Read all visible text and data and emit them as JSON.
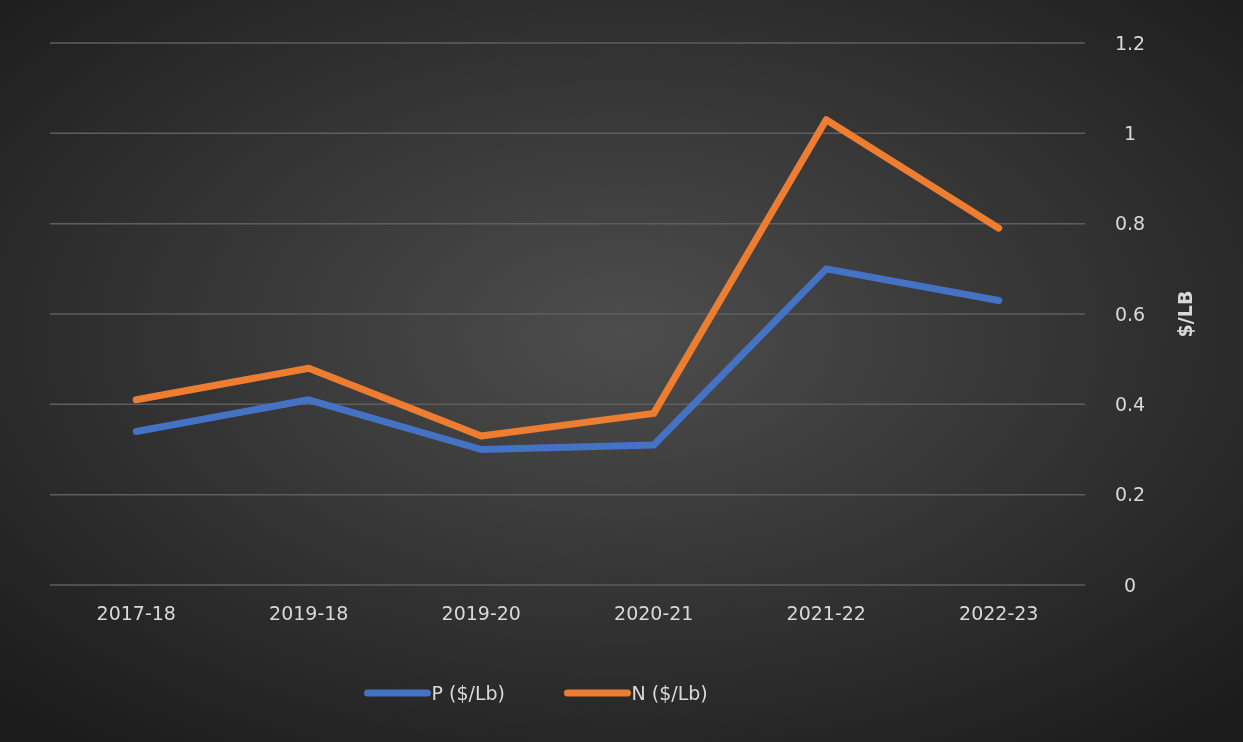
{
  "chart_data": {
    "type": "line",
    "categories": [
      "2017-18",
      "2019-18",
      "2019-20",
      "2020-21",
      "2021-22",
      "2022-23"
    ],
    "series": [
      {
        "name": "P ($/Lb)",
        "color": "#4472c4",
        "values": [
          0.34,
          0.41,
          0.3,
          0.31,
          0.7,
          0.63
        ]
      },
      {
        "name": "N ($/Lb)",
        "color": "#ed7d31",
        "values": [
          0.41,
          0.48,
          0.33,
          0.38,
          1.03,
          0.79
        ]
      }
    ],
    "ylabel": "$/LB",
    "ylim": [
      0,
      1.2
    ],
    "yticks": [
      0,
      0.2,
      0.4,
      0.6,
      0.8,
      1,
      1.2
    ],
    "grid": "y",
    "legend": "bottom",
    "line_style": "solid",
    "marker": "none"
  }
}
